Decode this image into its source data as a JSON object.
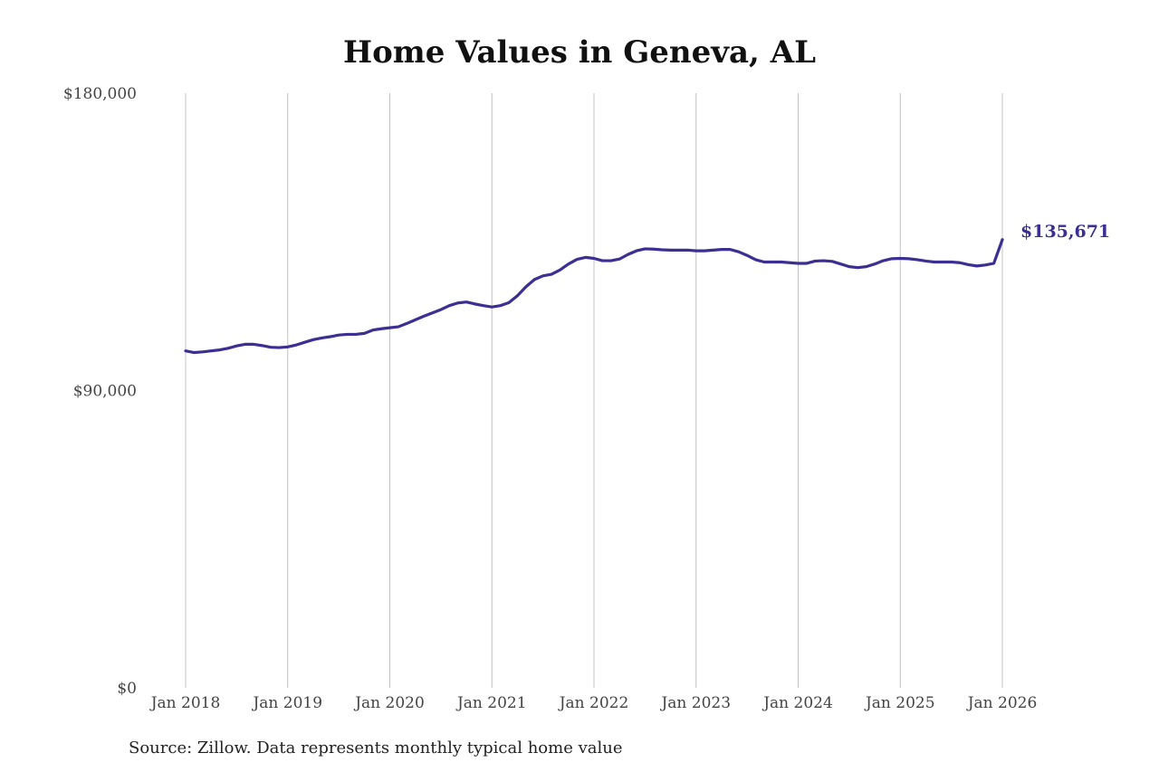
{
  "chart_data": {
    "type": "line",
    "title": "Home Values in Geneva, AL",
    "source": "Source: Zillow. Data represents monthly typical home value",
    "xlabel": "",
    "ylabel": "",
    "ylim": [
      0,
      180000
    ],
    "y_ticks": [
      {
        "value": 0,
        "label": "$0"
      },
      {
        "value": 90000,
        "label": "$90,000"
      },
      {
        "value": 180000,
        "label": "$180,000"
      }
    ],
    "x_ticks": [
      {
        "value": "2018-01",
        "label": "Jan 2018"
      },
      {
        "value": "2019-01",
        "label": "Jan 2019"
      },
      {
        "value": "2020-01",
        "label": "Jan 2020"
      },
      {
        "value": "2021-01",
        "label": "Jan 2021"
      },
      {
        "value": "2022-01",
        "label": "Jan 2022"
      },
      {
        "value": "2023-01",
        "label": "Jan 2023"
      },
      {
        "value": "2024-01",
        "label": "Jan 2024"
      },
      {
        "value": "2025-01",
        "label": "Jan 2025"
      },
      {
        "value": "2026-01",
        "label": "Jan 2026"
      }
    ],
    "xlim": [
      "2018-01",
      "2026-01"
    ],
    "grid": "vertical",
    "line_color": "#3b2f93",
    "end_label": "$135,671",
    "series": [
      {
        "x": [
          "2018-01",
          "2018-02",
          "2018-03",
          "2018-04",
          "2018-05",
          "2018-06",
          "2018-07",
          "2018-08",
          "2018-09",
          "2018-10",
          "2018-11",
          "2018-12",
          "2019-01",
          "2019-02",
          "2019-03",
          "2019-04",
          "2019-05",
          "2019-06",
          "2019-07",
          "2019-08",
          "2019-09",
          "2019-10",
          "2019-11",
          "2019-12",
          "2020-01",
          "2020-02",
          "2020-03",
          "2020-04",
          "2020-05",
          "2020-06",
          "2020-07",
          "2020-08",
          "2020-09",
          "2020-10",
          "2020-11",
          "2020-12",
          "2021-01",
          "2021-02",
          "2021-03",
          "2021-04",
          "2021-05",
          "2021-06",
          "2021-07",
          "2021-08",
          "2021-09",
          "2021-10",
          "2021-11",
          "2021-12",
          "2022-01",
          "2022-02",
          "2022-03",
          "2022-04",
          "2022-05",
          "2022-06",
          "2022-07",
          "2022-08",
          "2022-09",
          "2022-10",
          "2022-11",
          "2022-12",
          "2023-01",
          "2023-02",
          "2023-03",
          "2023-04",
          "2023-05",
          "2023-06",
          "2023-07",
          "2023-08",
          "2023-09",
          "2023-10",
          "2023-11",
          "2023-12",
          "2024-01",
          "2024-02",
          "2024-03",
          "2024-04",
          "2024-05",
          "2024-06",
          "2024-07",
          "2024-08",
          "2024-09",
          "2024-10",
          "2024-11",
          "2024-12",
          "2025-01",
          "2025-02",
          "2025-03",
          "2025-04",
          "2025-05",
          "2025-06",
          "2025-07",
          "2025-08",
          "2025-09",
          "2025-10",
          "2025-11",
          "2025-12",
          "2026-01"
        ],
        "values": [
          102000,
          101500,
          101700,
          102000,
          102300,
          102800,
          103500,
          104000,
          104000,
          103600,
          103100,
          103000,
          103200,
          103800,
          104600,
          105400,
          105900,
          106300,
          106800,
          107000,
          107000,
          107300,
          108300,
          108700,
          109000,
          109300,
          110300,
          111400,
          112500,
          113500,
          114500,
          115700,
          116500,
          116800,
          116200,
          115700,
          115300,
          115700,
          116600,
          118700,
          121400,
          123600,
          124700,
          125200,
          126500,
          128300,
          129700,
          130300,
          130000,
          129300,
          129300,
          129800,
          131200,
          132300,
          132900,
          132800,
          132600,
          132500,
          132500,
          132500,
          132300,
          132300,
          132500,
          132700,
          132700,
          132000,
          130900,
          129600,
          128900,
          128900,
          128900,
          128700,
          128500,
          128500,
          129200,
          129300,
          129100,
          128300,
          127500,
          127200,
          127500,
          128300,
          129300,
          129900,
          130000,
          129900,
          129600,
          129200,
          128900,
          128900,
          128900,
          128700,
          128100,
          127700,
          128000,
          128500,
          135671
        ]
      }
    ]
  }
}
